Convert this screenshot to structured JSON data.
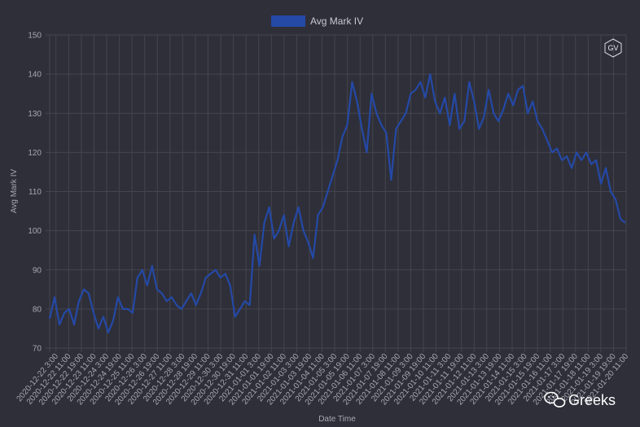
{
  "colors": {
    "background": "#2f2f39",
    "grid": "#45454f",
    "series": "#2449a6",
    "text": "#a7a7b3"
  },
  "badge": {
    "text": "GV"
  },
  "watermark": {
    "icon": "wechat-icon",
    "text": "Greeks"
  },
  "chart_data": {
    "type": "line",
    "legend": {
      "position": "top-center"
    },
    "grid": true,
    "xlabel": "Date Time",
    "ylabel": "Avg Mark IV",
    "ylim": [
      70,
      150
    ],
    "yticks": [
      70,
      80,
      90,
      100,
      110,
      120,
      130,
      140,
      150
    ],
    "x_tick_labels": [
      "2020-12-22 3:00",
      "2020-12-22 11:00",
      "2020-12-22 19:00",
      "2020-12-23 11:00",
      "2020-12-24 3:00",
      "2020-12-24 19:00",
      "2020-12-25 11:00",
      "2020-12-26 3:00",
      "2020-12-26 19:00",
      "2020-12-27 11:00",
      "2020-12-28 3:00",
      "2020-12-28 19:00",
      "2020-12-29 11:00",
      "2020-12-30 3:00",
      "2020-12-30 19:00",
      "2020-12-31 11:00",
      "2021-01-01 3:00",
      "2021-01-01 19:00",
      "2021-01-02 11:00",
      "2021-01-03 3:00",
      "2021-01-03 19:00",
      "2021-01-04 11:00",
      "2021-01-05 3:00",
      "2021-01-05 19:00",
      "2021-01-06 11:00",
      "2021-01-07 3:00",
      "2021-01-07 19:00",
      "2021-01-08 11:00",
      "2021-01-09 3:00",
      "2021-01-09 19:00",
      "2021-01-10 11:00",
      "2021-01-11 3:00",
      "2021-01-11 19:00",
      "2021-01-12 11:00",
      "2021-01-13 3:00",
      "2021-01-13 19:00",
      "2021-01-14 11:00",
      "2021-01-15 3:00",
      "2021-01-15 19:00",
      "2021-01-16 11:00",
      "2021-01-17 3:00",
      "2021-01-17 19:00",
      "2021-01-18 11:00",
      "2021-01-19 3:00",
      "2021-01-19 19:00",
      "2021-01-20 11:00"
    ],
    "series": [
      {
        "name": "Avg Mark IV",
        "values": [
          77.5,
          83,
          76,
          79,
          80,
          76,
          82,
          85,
          84,
          79,
          75,
          78,
          74,
          77,
          83,
          80,
          80,
          79,
          88,
          90,
          86,
          91,
          85,
          84,
          82,
          83,
          81,
          80,
          82,
          84,
          81,
          84,
          88,
          89,
          90,
          88,
          89,
          86,
          78,
          80,
          82,
          81,
          99,
          91,
          102,
          106,
          98,
          100,
          104,
          96,
          102,
          106,
          100,
          97,
          93,
          104,
          106,
          110,
          114,
          118,
          124,
          127,
          138,
          133,
          126,
          120,
          135,
          130,
          127,
          125,
          113,
          126,
          128,
          130,
          135,
          136,
          138,
          134,
          140,
          133,
          130,
          134,
          127,
          135,
          126,
          128,
          138,
          133,
          126,
          129,
          136,
          130,
          128,
          131,
          135,
          132,
          136,
          137,
          130,
          133,
          128,
          126,
          123,
          120,
          121,
          118,
          119,
          116,
          120,
          118,
          120,
          117,
          118,
          112,
          116,
          110,
          108,
          103,
          102
        ]
      }
    ]
  }
}
